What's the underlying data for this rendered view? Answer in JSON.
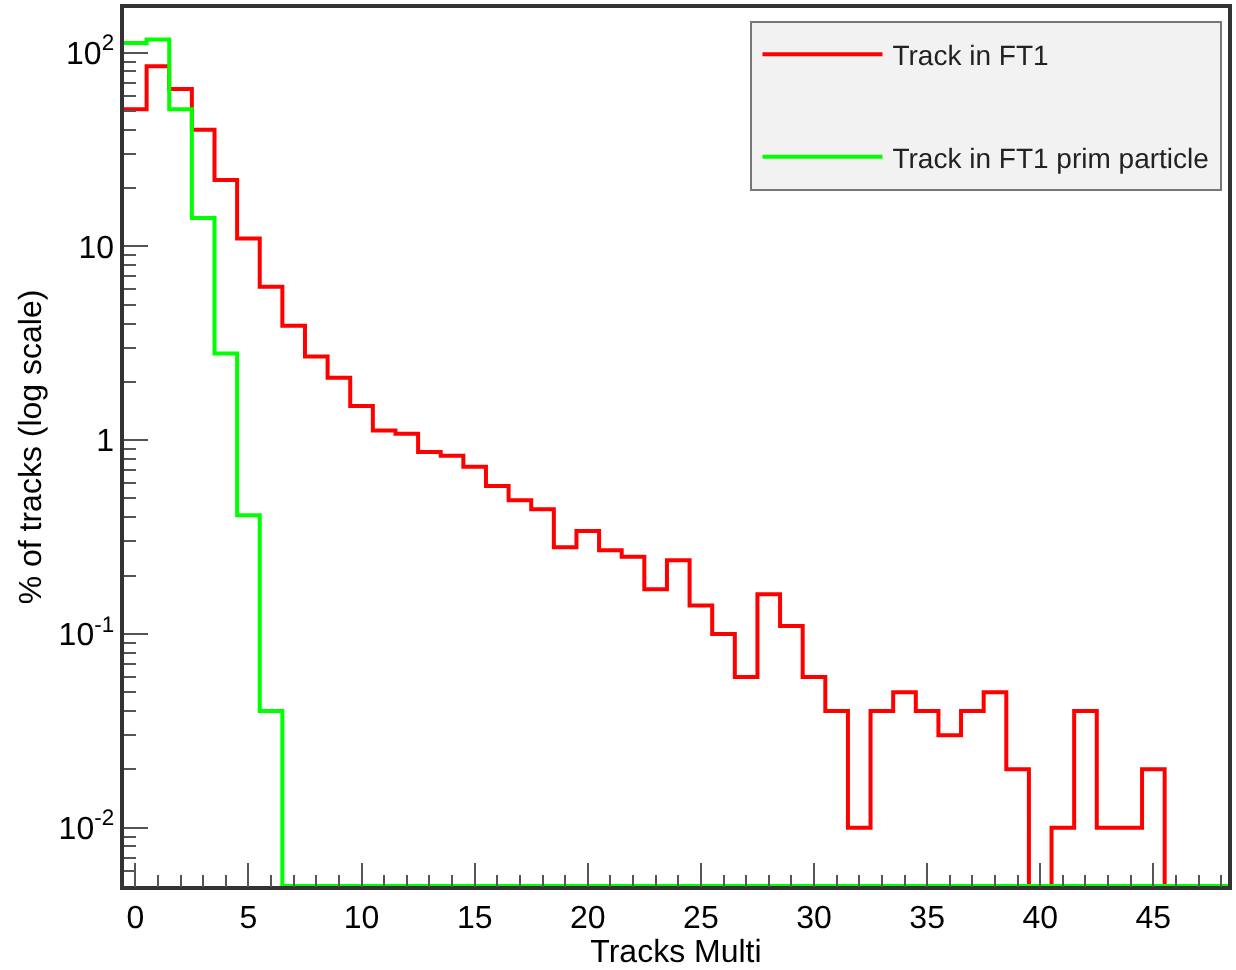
{
  "chart_data": {
    "type": "histogram",
    "xlabel": "Tracks Multi",
    "ylabel": "% of tracks (log scale)",
    "bins": [
      -0.5,
      0.5,
      1.5,
      2.5,
      3.5,
      4.5,
      5.5,
      6.5,
      7.5,
      8.5,
      9.5,
      10.5,
      11.5,
      12.5,
      13.5,
      14.5,
      15.5,
      16.5,
      17.5,
      18.5,
      19.5,
      20.5,
      21.5,
      22.5,
      23.5,
      24.5,
      25.5,
      26.5,
      27.5,
      28.5,
      29.5,
      30.5,
      31.5,
      32.5,
      33.5,
      34.5,
      35.5,
      36.5,
      37.5,
      38.5,
      39.5,
      40.5,
      41.5,
      42.5,
      43.5,
      44.5,
      45.5,
      46.5,
      47.5,
      48.5
    ],
    "series": [
      {
        "name": "Track in FT1",
        "color": "#ff0000",
        "values": [
          51,
          85,
          65,
          40,
          22,
          11,
          6.2,
          3.9,
          2.7,
          2.1,
          1.5,
          1.12,
          1.08,
          0.87,
          0.83,
          0.73,
          0.58,
          0.49,
          0.44,
          0.28,
          0.34,
          0.27,
          0.25,
          0.17,
          0.24,
          0.14,
          0.1,
          0.06,
          0.16,
          0.11,
          0.06,
          0.04,
          0.01,
          0.04,
          0.05,
          0.04,
          0.03,
          0.04,
          0.05,
          0.02,
          null,
          0.01,
          0.04,
          0.01,
          0.01,
          0.02,
          null,
          null,
          null
        ]
      },
      {
        "name": "Track in FT1 prim particle",
        "color": "#00ff00",
        "values": [
          112,
          117,
          51,
          14,
          2.8,
          0.41,
          0.04,
          null,
          null,
          null,
          null,
          null,
          null,
          null,
          null,
          null,
          null,
          null,
          null,
          null,
          null,
          null,
          null,
          null,
          null,
          null,
          null,
          null,
          null,
          null,
          null,
          null,
          null,
          null,
          null,
          null,
          null,
          null,
          null,
          null,
          null,
          null,
          null,
          null,
          null,
          null,
          null,
          null,
          null
        ]
      }
    ],
    "log": "y",
    "xlim": [
      -0.5,
      48.3
    ],
    "ylim": [
      0.005,
      170
    ],
    "xticks": [
      0,
      {
        "value": 1,
        "label": null
      },
      {
        "value": 2,
        "label": null
      },
      {
        "value": 3,
        "label": null
      },
      {
        "value": 4,
        "label": null
      },
      5,
      {
        "value": 6,
        "label": null
      },
      {
        "value": 7,
        "label": null
      },
      {
        "value": 8,
        "label": null
      },
      {
        "value": 9,
        "label": null
      },
      10,
      {
        "value": 11,
        "label": null
      },
      {
        "value": 12,
        "label": null
      },
      {
        "value": 13,
        "label": null
      },
      {
        "value": 14,
        "label": null
      },
      15,
      {
        "value": 16,
        "label": null
      },
      {
        "value": 17,
        "label": null
      },
      {
        "value": 18,
        "label": null
      },
      {
        "value": 19,
        "label": null
      },
      20,
      {
        "value": 21,
        "label": null
      },
      {
        "value": 22,
        "label": null
      },
      {
        "value": 23,
        "label": null
      },
      {
        "value": 24,
        "label": null
      },
      25,
      {
        "value": 26,
        "label": null
      },
      {
        "value": 27,
        "label": null
      },
      {
        "value": 28,
        "label": null
      },
      {
        "value": 29,
        "label": null
      },
      30,
      {
        "value": 31,
        "label": null
      },
      {
        "value": 32,
        "label": null
      },
      {
        "value": 33,
        "label": null
      },
      {
        "value": 34,
        "label": null
      },
      35,
      {
        "value": 36,
        "label": null
      },
      {
        "value": 37,
        "label": null
      },
      {
        "value": 38,
        "label": null
      },
      {
        "value": 39,
        "label": null
      },
      40,
      {
        "value": 41,
        "label": null
      },
      {
        "value": 42,
        "label": null
      },
      {
        "value": 43,
        "label": null
      },
      {
        "value": 44,
        "label": null
      },
      45,
      {
        "value": 46,
        "label": null
      },
      {
        "value": 47,
        "label": null
      },
      {
        "value": 48,
        "label": null
      }
    ],
    "yticks": [
      {
        "value": 0.006,
        "label": null
      },
      {
        "value": 0.007,
        "label": null
      },
      {
        "value": 0.008,
        "label": null
      },
      {
        "value": 0.009,
        "label": null
      },
      {
        "value": 0.01,
        "label": "10$^{-2}$"
      },
      {
        "value": 0.02,
        "label": null
      },
      {
        "value": 0.03,
        "label": null
      },
      {
        "value": 0.04,
        "label": null
      },
      {
        "value": 0.05,
        "label": null
      },
      {
        "value": 0.06,
        "label": null
      },
      {
        "value": 0.07,
        "label": null
      },
      {
        "value": 0.08,
        "label": null
      },
      {
        "value": 0.09,
        "label": null
      },
      {
        "value": 0.1,
        "label": "10$^{-1}$"
      },
      {
        "value": 0.2,
        "label": null
      },
      {
        "value": 0.3,
        "label": null
      },
      {
        "value": 0.4,
        "label": null
      },
      {
        "value": 0.5,
        "label": null
      },
      {
        "value": 0.6,
        "label": null
      },
      {
        "value": 0.7,
        "label": null
      },
      {
        "value": 0.8,
        "label": null
      },
      {
        "value": 0.9,
        "label": null
      },
      1,
      {
        "value": 2,
        "label": null
      },
      {
        "value": 3,
        "label": null
      },
      {
        "value": 4,
        "label": null
      },
      {
        "value": 5,
        "label": null
      },
      {
        "value": 6,
        "label": null
      },
      {
        "value": 7,
        "label": null
      },
      {
        "value": 8,
        "label": null
      },
      {
        "value": 9,
        "label": null
      },
      10,
      {
        "value": 20,
        "label": null
      },
      {
        "value": 30,
        "label": null
      },
      {
        "value": 40,
        "label": null
      },
      {
        "value": 50,
        "label": null
      },
      {
        "value": 60,
        "label": null
      },
      {
        "value": 70,
        "label": null
      },
      {
        "value": 80,
        "label": null
      },
      {
        "value": 90,
        "label": null
      },
      {
        "value": 100,
        "label": "10$^{2}$"
      }
    ],
    "legend": "top right"
  }
}
